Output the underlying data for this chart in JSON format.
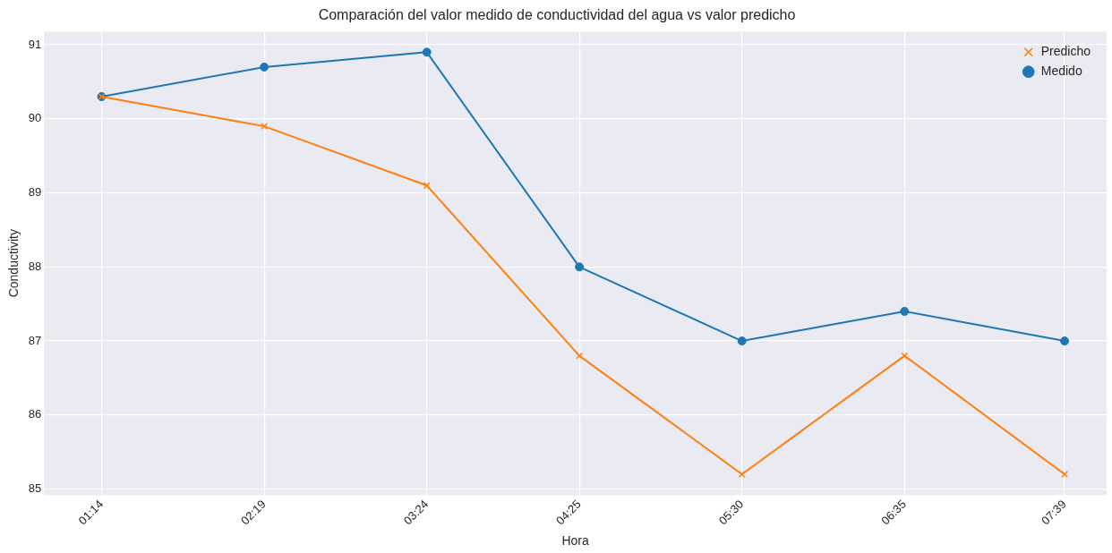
{
  "chart_data": {
    "type": "line",
    "title": "Comparación del valor medido de conductividad del agua vs valor predicho",
    "xlabel": "Hora",
    "ylabel": "Conductivity",
    "x": [
      1.2333,
      2.3167,
      3.4,
      4.4167,
      5.5,
      6.5833,
      7.65
    ],
    "series": [
      {
        "name": "Medido",
        "color": "#1f77b4",
        "marker": "circle",
        "values": [
          90.3,
          90.7,
          90.9,
          88.0,
          87.0,
          87.4,
          87.0
        ]
      },
      {
        "name": "Predicho",
        "color": "#ff7f0e",
        "marker": "cross",
        "values": [
          90.3,
          89.9,
          89.1,
          86.8,
          85.2,
          86.8,
          85.2
        ]
      }
    ],
    "xlim": [
      0.85,
      7.93
    ],
    "xticks": [
      {
        "value": 1.2333,
        "label": "01:14"
      },
      {
        "value": 2.3167,
        "label": "02:19"
      },
      {
        "value": 3.4,
        "label": "03:24"
      },
      {
        "value": 4.4167,
        "label": "04:25"
      },
      {
        "value": 5.5,
        "label": "05:30"
      },
      {
        "value": 6.5833,
        "label": "06:35"
      },
      {
        "value": 7.65,
        "label": "07:39"
      }
    ],
    "ylim": [
      84.92,
      91.18
    ],
    "yticks": [
      85,
      86,
      87,
      88,
      89,
      90,
      91
    ],
    "grid": true,
    "legend": "top right",
    "line_style": "solid"
  }
}
